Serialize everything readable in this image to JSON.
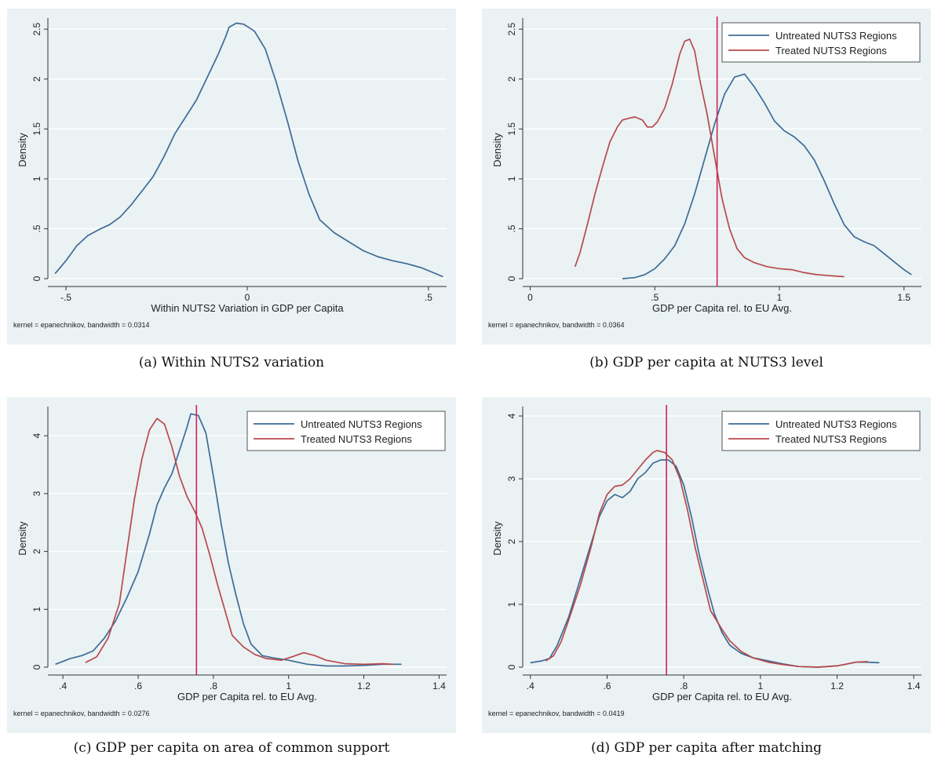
{
  "figure": {
    "captions": [
      "(a)  Within NUTS2 variation",
      "(b)  GDP per capita at NUTS3 level",
      "(c)  GDP per capita on area of common support",
      "(d)  GDP per capita after matching"
    ]
  },
  "colors": {
    "panel_bg": "#eaf2f3",
    "untreated": "#3e6b96",
    "treated": "#b8494c",
    "threshold": "#d0245b",
    "grid": "#ffffff",
    "axis": "#333333"
  },
  "chart_data": [
    {
      "type": "line",
      "xlabel": "Within NUTS2 Variation in GDP per Capita",
      "ylabel": "Density",
      "note": "kernel = epanechnikov, bandwidth = 0.0314",
      "xlim": [
        -0.55,
        0.55
      ],
      "ylim": [
        0,
        2.58
      ],
      "xticks": [
        -0.5,
        0,
        0.5
      ],
      "xtick_labels": [
        "-.5",
        "0",
        ".5"
      ],
      "yticks": [
        0,
        0.5,
        1,
        1.5,
        2,
        2.5
      ],
      "ytick_labels": [
        "0",
        ".5",
        "1",
        "1.5",
        "2",
        "2.5"
      ],
      "grid": true,
      "legend": null,
      "vline": null,
      "series": [
        {
          "name": "",
          "color": "#3e6b96",
          "points": [
            [
              -0.53,
              0.05
            ],
            [
              -0.5,
              0.18
            ],
            [
              -0.47,
              0.33
            ],
            [
              -0.44,
              0.43
            ],
            [
              -0.41,
              0.49
            ],
            [
              -0.38,
              0.54
            ],
            [
              -0.35,
              0.62
            ],
            [
              -0.32,
              0.74
            ],
            [
              -0.29,
              0.88
            ],
            [
              -0.26,
              1.02
            ],
            [
              -0.23,
              1.22
            ],
            [
              -0.2,
              1.45
            ],
            [
              -0.17,
              1.62
            ],
            [
              -0.14,
              1.79
            ],
            [
              -0.11,
              2.02
            ],
            [
              -0.08,
              2.25
            ],
            [
              -0.06,
              2.42
            ],
            [
              -0.05,
              2.52
            ],
            [
              -0.03,
              2.56
            ],
            [
              -0.01,
              2.55
            ],
            [
              0.02,
              2.48
            ],
            [
              0.05,
              2.3
            ],
            [
              0.08,
              1.97
            ],
            [
              0.11,
              1.59
            ],
            [
              0.14,
              1.18
            ],
            [
              0.17,
              0.85
            ],
            [
              0.2,
              0.59
            ],
            [
              0.24,
              0.46
            ],
            [
              0.28,
              0.37
            ],
            [
              0.32,
              0.28
            ],
            [
              0.36,
              0.22
            ],
            [
              0.4,
              0.18
            ],
            [
              0.44,
              0.15
            ],
            [
              0.48,
              0.11
            ],
            [
              0.52,
              0.05
            ],
            [
              0.54,
              0.02
            ]
          ]
        }
      ]
    },
    {
      "type": "line",
      "xlabel": "GDP per Capita rel. to EU Avg.",
      "ylabel": "Density",
      "note": "kernel = epanechnikov, bandwidth = 0.0364",
      "xlim": [
        -0.03,
        1.57
      ],
      "ylim": [
        0,
        2.58
      ],
      "xticks": [
        0,
        0.5,
        1,
        1.5
      ],
      "xtick_labels": [
        "0",
        ".5",
        "1",
        "1.5"
      ],
      "yticks": [
        0,
        0.5,
        1,
        1.5,
        2,
        2.5
      ],
      "ytick_labels": [
        "0",
        ".5",
        "1",
        "1.5",
        "2",
        "2.5"
      ],
      "grid": true,
      "legend": "top-right",
      "vline": 0.75,
      "series": [
        {
          "name": "Untreated NUTS3 Regions",
          "color": "#3e6b96",
          "points": [
            [
              0.37,
              0.0
            ],
            [
              0.42,
              0.01
            ],
            [
              0.46,
              0.04
            ],
            [
              0.5,
              0.1
            ],
            [
              0.54,
              0.2
            ],
            [
              0.58,
              0.33
            ],
            [
              0.62,
              0.55
            ],
            [
              0.66,
              0.85
            ],
            [
              0.7,
              1.2
            ],
            [
              0.74,
              1.55
            ],
            [
              0.78,
              1.85
            ],
            [
              0.82,
              2.02
            ],
            [
              0.86,
              2.05
            ],
            [
              0.9,
              1.92
            ],
            [
              0.94,
              1.76
            ],
            [
              0.98,
              1.58
            ],
            [
              1.02,
              1.48
            ],
            [
              1.06,
              1.42
            ],
            [
              1.1,
              1.33
            ],
            [
              1.14,
              1.19
            ],
            [
              1.18,
              0.98
            ],
            [
              1.22,
              0.75
            ],
            [
              1.26,
              0.54
            ],
            [
              1.3,
              0.42
            ],
            [
              1.34,
              0.37
            ],
            [
              1.38,
              0.33
            ],
            [
              1.42,
              0.25
            ],
            [
              1.46,
              0.17
            ],
            [
              1.5,
              0.09
            ],
            [
              1.53,
              0.04
            ]
          ]
        },
        {
          "name": "Treated NUTS3 Regions",
          "color": "#b8494c",
          "points": [
            [
              0.18,
              0.12
            ],
            [
              0.2,
              0.26
            ],
            [
              0.23,
              0.55
            ],
            [
              0.26,
              0.85
            ],
            [
              0.29,
              1.12
            ],
            [
              0.32,
              1.37
            ],
            [
              0.35,
              1.52
            ],
            [
              0.37,
              1.59
            ],
            [
              0.4,
              1.61
            ],
            [
              0.42,
              1.62
            ],
            [
              0.45,
              1.59
            ],
            [
              0.47,
              1.52
            ],
            [
              0.49,
              1.52
            ],
            [
              0.51,
              1.57
            ],
            [
              0.54,
              1.71
            ],
            [
              0.57,
              1.95
            ],
            [
              0.6,
              2.25
            ],
            [
              0.62,
              2.38
            ],
            [
              0.64,
              2.4
            ],
            [
              0.66,
              2.28
            ],
            [
              0.68,
              2.0
            ],
            [
              0.71,
              1.65
            ],
            [
              0.74,
              1.22
            ],
            [
              0.77,
              0.8
            ],
            [
              0.8,
              0.5
            ],
            [
              0.83,
              0.3
            ],
            [
              0.86,
              0.21
            ],
            [
              0.9,
              0.16
            ],
            [
              0.95,
              0.12
            ],
            [
              1.0,
              0.1
            ],
            [
              1.05,
              0.09
            ],
            [
              1.1,
              0.06
            ],
            [
              1.15,
              0.04
            ],
            [
              1.2,
              0.03
            ],
            [
              1.26,
              0.02
            ]
          ]
        }
      ]
    },
    {
      "type": "line",
      "xlabel": "GDP per Capita rel. to EU Avg.",
      "ylabel": "Density",
      "note": "kernel = epanechnikov, bandwidth = 0.0276",
      "xlim": [
        0.36,
        1.42
      ],
      "ylim": [
        0,
        4.45
      ],
      "xticks": [
        0.4,
        0.6,
        0.8,
        1,
        1.2,
        1.4
      ],
      "xtick_labels": [
        ".4",
        ".6",
        ".8",
        "1",
        "1.2",
        "1.4"
      ],
      "yticks": [
        0,
        1,
        2,
        3,
        4
      ],
      "ytick_labels": [
        "0",
        "1",
        "2",
        "3",
        "4"
      ],
      "grid": true,
      "legend": "top-right",
      "vline": 0.755,
      "series": [
        {
          "name": "Untreated NUTS3 Regions",
          "color": "#3e6b96",
          "points": [
            [
              0.38,
              0.05
            ],
            [
              0.42,
              0.15
            ],
            [
              0.45,
              0.2
            ],
            [
              0.48,
              0.28
            ],
            [
              0.51,
              0.5
            ],
            [
              0.54,
              0.8
            ],
            [
              0.57,
              1.2
            ],
            [
              0.6,
              1.65
            ],
            [
              0.63,
              2.3
            ],
            [
              0.65,
              2.8
            ],
            [
              0.67,
              3.1
            ],
            [
              0.69,
              3.35
            ],
            [
              0.71,
              3.75
            ],
            [
              0.73,
              4.15
            ],
            [
              0.74,
              4.38
            ],
            [
              0.76,
              4.35
            ],
            [
              0.78,
              4.05
            ],
            [
              0.8,
              3.3
            ],
            [
              0.82,
              2.5
            ],
            [
              0.84,
              1.8
            ],
            [
              0.86,
              1.25
            ],
            [
              0.88,
              0.75
            ],
            [
              0.9,
              0.4
            ],
            [
              0.93,
              0.2
            ],
            [
              0.96,
              0.16
            ],
            [
              1.0,
              0.12
            ],
            [
              1.05,
              0.05
            ],
            [
              1.1,
              0.02
            ],
            [
              1.15,
              0.02
            ],
            [
              1.2,
              0.03
            ],
            [
              1.25,
              0.05
            ],
            [
              1.3,
              0.05
            ]
          ]
        },
        {
          "name": "Treated NUTS3 Regions",
          "color": "#b8494c",
          "points": [
            [
              0.46,
              0.08
            ],
            [
              0.49,
              0.18
            ],
            [
              0.52,
              0.5
            ],
            [
              0.55,
              1.1
            ],
            [
              0.57,
              2.0
            ],
            [
              0.59,
              2.9
            ],
            [
              0.61,
              3.6
            ],
            [
              0.63,
              4.1
            ],
            [
              0.65,
              4.3
            ],
            [
              0.67,
              4.2
            ],
            [
              0.69,
              3.8
            ],
            [
              0.71,
              3.3
            ],
            [
              0.73,
              2.95
            ],
            [
              0.75,
              2.7
            ],
            [
              0.77,
              2.4
            ],
            [
              0.79,
              1.95
            ],
            [
              0.81,
              1.45
            ],
            [
              0.83,
              1.0
            ],
            [
              0.85,
              0.55
            ],
            [
              0.88,
              0.35
            ],
            [
              0.91,
              0.22
            ],
            [
              0.94,
              0.15
            ],
            [
              0.98,
              0.12
            ],
            [
              1.01,
              0.18
            ],
            [
              1.04,
              0.25
            ],
            [
              1.07,
              0.2
            ],
            [
              1.1,
              0.12
            ],
            [
              1.15,
              0.06
            ],
            [
              1.2,
              0.05
            ],
            [
              1.25,
              0.06
            ],
            [
              1.28,
              0.05
            ]
          ]
        }
      ]
    },
    {
      "type": "line",
      "xlabel": "GDP per Capita rel. to EU Avg.",
      "ylabel": "Density",
      "note": "kernel = epanechnikov, bandwidth = 0.0419",
      "xlim": [
        0.38,
        1.42
      ],
      "ylim": [
        0,
        4.1
      ],
      "xticks": [
        0.4,
        0.6,
        0.8,
        1,
        1.2,
        1.4
      ],
      "xtick_labels": [
        ".4",
        ".6",
        ".8",
        "1",
        "1.2",
        "1.4"
      ],
      "yticks": [
        0,
        1,
        2,
        3,
        4
      ],
      "ytick_labels": [
        "0",
        "1",
        "2",
        "3",
        "4"
      ],
      "grid": true,
      "legend": "top-right",
      "vline": 0.755,
      "series": [
        {
          "name": "Untreated NUTS3 Regions",
          "color": "#3e6b96",
          "points": [
            [
              0.4,
              0.07
            ],
            [
              0.43,
              0.1
            ],
            [
              0.45,
              0.14
            ],
            [
              0.47,
              0.35
            ],
            [
              0.5,
              0.8
            ],
            [
              0.53,
              1.4
            ],
            [
              0.56,
              2.0
            ],
            [
              0.58,
              2.4
            ],
            [
              0.6,
              2.65
            ],
            [
              0.62,
              2.75
            ],
            [
              0.64,
              2.7
            ],
            [
              0.66,
              2.8
            ],
            [
              0.68,
              3.0
            ],
            [
              0.7,
              3.1
            ],
            [
              0.72,
              3.25
            ],
            [
              0.74,
              3.3
            ],
            [
              0.76,
              3.3
            ],
            [
              0.78,
              3.2
            ],
            [
              0.8,
              2.9
            ],
            [
              0.82,
              2.4
            ],
            [
              0.84,
              1.8
            ],
            [
              0.86,
              1.3
            ],
            [
              0.88,
              0.85
            ],
            [
              0.9,
              0.55
            ],
            [
              0.92,
              0.35
            ],
            [
              0.95,
              0.22
            ],
            [
              0.98,
              0.15
            ],
            [
              1.02,
              0.1
            ],
            [
              1.06,
              0.05
            ],
            [
              1.1,
              0.01
            ],
            [
              1.15,
              0.0
            ],
            [
              1.2,
              0.02
            ],
            [
              1.25,
              0.08
            ],
            [
              1.28,
              0.08
            ],
            [
              1.31,
              0.07
            ]
          ]
        },
        {
          "name": "Treated NUTS3 Regions",
          "color": "#b8494c",
          "points": [
            [
              0.44,
              0.1
            ],
            [
              0.46,
              0.18
            ],
            [
              0.48,
              0.4
            ],
            [
              0.5,
              0.75
            ],
            [
              0.53,
              1.3
            ],
            [
              0.56,
              1.95
            ],
            [
              0.58,
              2.45
            ],
            [
              0.6,
              2.75
            ],
            [
              0.62,
              2.88
            ],
            [
              0.64,
              2.9
            ],
            [
              0.66,
              3.0
            ],
            [
              0.68,
              3.15
            ],
            [
              0.7,
              3.3
            ],
            [
              0.72,
              3.42
            ],
            [
              0.73,
              3.45
            ],
            [
              0.75,
              3.42
            ],
            [
              0.77,
              3.3
            ],
            [
              0.79,
              3.0
            ],
            [
              0.81,
              2.5
            ],
            [
              0.83,
              1.9
            ],
            [
              0.85,
              1.4
            ],
            [
              0.87,
              0.9
            ],
            [
              0.9,
              0.6
            ],
            [
              0.92,
              0.42
            ],
            [
              0.95,
              0.25
            ],
            [
              0.98,
              0.15
            ],
            [
              1.02,
              0.08
            ],
            [
              1.06,
              0.04
            ],
            [
              1.1,
              0.01
            ],
            [
              1.15,
              0.0
            ],
            [
              1.2,
              0.02
            ],
            [
              1.25,
              0.08
            ],
            [
              1.28,
              0.09
            ]
          ]
        }
      ]
    }
  ]
}
